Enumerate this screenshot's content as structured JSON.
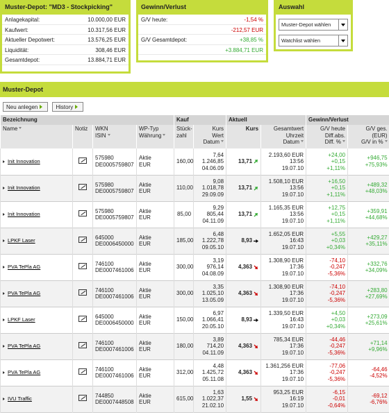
{
  "depot": {
    "title": "Muster-Depot: \"MD3 - Stockpicking\"",
    "rows": [
      {
        "label": "Anlagekapital:",
        "value": "10.000,00 EUR"
      },
      {
        "label": "Kaufwert:",
        "value": "10.317,56 EUR"
      },
      {
        "label": "Aktueller Depotwert:",
        "value": "13.576,25 EUR"
      },
      {
        "label": "Liquidität:",
        "value": "308,46 EUR"
      },
      {
        "label": "Gesamtdepot:",
        "value": "13.884,71 EUR"
      }
    ]
  },
  "gv": {
    "title": "Gewinn/Verlust",
    "rows": [
      {
        "label": "G/V heute:",
        "value": "-1,54 %"
      },
      {
        "value": "-212,57 EUR"
      },
      {
        "label": "G/V Gesamtdepot:",
        "value": "+38,85 %"
      },
      {
        "value": "+3.884,71 EUR"
      }
    ]
  },
  "auswahl": {
    "title": "Auswahl",
    "selects": [
      "Muster-Depot wählen",
      "Watchlist wählen"
    ]
  },
  "section": {
    "title": "Muster-Depot",
    "buttons": [
      "Neu anlegen",
      "History"
    ]
  },
  "table": {
    "groups": [
      "Bezeichnung",
      "Kauf",
      "Aktuell",
      "Gewinn/Verlust"
    ],
    "headers": [
      [
        "Name"
      ],
      [
        "Notiz"
      ],
      [
        "WKN",
        "ISIN"
      ],
      [
        "WP-Typ",
        "Währung"
      ],
      [
        "Stück-",
        "zahl"
      ],
      [
        "Kurs",
        "Wert",
        "Datum"
      ],
      [
        "Kurs"
      ],
      [
        "Gesamtwert",
        "Uhrzeit",
        "Datum"
      ],
      [
        "G/V heute",
        "Diff.abs.",
        "Diff. %"
      ],
      [
        "G/V ges.",
        "(EUR)",
        "G/V in %"
      ]
    ],
    "rows": [
      {
        "name": "Init Innovation",
        "wkn": "575980",
        "isin": "DE0005759807",
        "typ": "Aktie",
        "cur": "EUR",
        "qty": "160,00",
        "buy": [
          "7,64",
          "1.246,85",
          "04.06.09"
        ],
        "price": "13,71",
        "trend": "up",
        "total": [
          "2.193,60 EUR",
          "13:56",
          "19.07.10"
        ],
        "day": [
          "+24,00",
          "+0,15",
          "+1,11%"
        ],
        "gv": [
          "+946,75",
          "+75,93%"
        ]
      },
      {
        "name": "Init Innovation",
        "wkn": "575980",
        "isin": "DE0005759807",
        "typ": "Aktie",
        "cur": "EUR",
        "qty": "110,00",
        "buy": [
          "9,08",
          "1.018,78",
          "29.09.09"
        ],
        "price": "13,71",
        "trend": "up",
        "total": [
          "1.508,10 EUR",
          "13:56",
          "19.07.10"
        ],
        "day": [
          "+16,50",
          "+0,15",
          "+1,11%"
        ],
        "gv": [
          "+489,32",
          "+48,03%"
        ]
      },
      {
        "name": "Init Innovation",
        "wkn": "575980",
        "isin": "DE0005759807",
        "typ": "Aktie",
        "cur": "EUR",
        "qty": "85,00",
        "buy": [
          "9,29",
          "805,44",
          "04.11.09"
        ],
        "price": "13,71",
        "trend": "up",
        "total": [
          "1.165,35 EUR",
          "13:56",
          "19.07.10"
        ],
        "day": [
          "+12,75",
          "+0,15",
          "+1,11%"
        ],
        "gv": [
          "+359,91",
          "+44,68%"
        ]
      },
      {
        "name": "LPKF Laser",
        "wkn": "645000",
        "isin": "DE0006450000",
        "typ": "Aktie",
        "cur": "EUR",
        "qty": "185,00",
        "buy": [
          "6,48",
          "1.222,78",
          "09.05.10"
        ],
        "price": "8,93",
        "trend": "right",
        "total": [
          "1.652,05 EUR",
          "16:43",
          "19.07.10"
        ],
        "day": [
          "+5,55",
          "+0,03",
          "+0,34%"
        ],
        "gv": [
          "+429,27",
          "+35,11%"
        ]
      },
      {
        "name": "PVA TePla AG",
        "wkn": "746100",
        "isin": "DE0007461006",
        "typ": "Aktie",
        "cur": "EUR",
        "qty": "300,00",
        "buy": [
          "3,19",
          "976,14",
          "04.08.09"
        ],
        "price": "4,363",
        "trend": "down",
        "total": [
          "1.308,90 EUR",
          "17:36",
          "19.07.10"
        ],
        "day": [
          "-74,10",
          "-0,247",
          "-5,36%"
        ],
        "gv": [
          "+332,76",
          "+34,09%"
        ]
      },
      {
        "name": "PVA TePla AG",
        "wkn": "746100",
        "isin": "DE0007461006",
        "typ": "Aktie",
        "cur": "EUR",
        "qty": "300,00",
        "buy": [
          "3,35",
          "1.025,10",
          "13.05.09"
        ],
        "price": "4,363",
        "trend": "down",
        "total": [
          "1.308,90 EUR",
          "17:36",
          "19.07.10"
        ],
        "day": [
          "-74,10",
          "-0,247",
          "-5,36%"
        ],
        "gv": [
          "+283,80",
          "+27,69%"
        ]
      },
      {
        "name": "LPKF Laser",
        "wkn": "645000",
        "isin": "DE0006450000",
        "typ": "Aktie",
        "cur": "EUR",
        "qty": "150,00",
        "buy": [
          "6,97",
          "1.066,41",
          "20.05.10"
        ],
        "price": "8,93",
        "trend": "right",
        "total": [
          "1.339,50 EUR",
          "16:43",
          "19.07.10"
        ],
        "day": [
          "+4,50",
          "+0,03",
          "+0,34%"
        ],
        "gv": [
          "+273,09",
          "+25,61%"
        ]
      },
      {
        "name": "PVA TePla AG",
        "wkn": "746100",
        "isin": "DE0007461006",
        "typ": "Aktie",
        "cur": "EUR",
        "qty": "180,00",
        "buy": [
          "3,89",
          "714,20",
          "04.11.09"
        ],
        "price": "4,363",
        "trend": "down",
        "total": [
          "785,34 EUR",
          "17:36",
          "19.07.10"
        ],
        "day": [
          "-44,46",
          "-0,247",
          "-5,36%"
        ],
        "gv": [
          "+71,14",
          "+9,96%"
        ]
      },
      {
        "name": "PVA TePla AG",
        "wkn": "746100",
        "isin": "DE0007461006",
        "typ": "Aktie",
        "cur": "EUR",
        "qty": "312,00",
        "buy": [
          "4,48",
          "1.425,72",
          "05.11.08"
        ],
        "price": "4,363",
        "trend": "down",
        "total": [
          "1.361,256 EUR",
          "17:36",
          "19.07.10"
        ],
        "day": [
          "-77,06",
          "-0,247",
          "-5,36%"
        ],
        "gv": [
          "-64,46",
          "-4,52%"
        ]
      },
      {
        "name": "IVU Traffic",
        "wkn": "744850",
        "isin": "DE0007448508",
        "typ": "Aktie",
        "cur": "EUR",
        "qty": "615,00",
        "buy": [
          "1,63",
          "1.022,37",
          "21.02.10"
        ],
        "price": "1,55",
        "trend": "down",
        "total": [
          "953,25 EUR",
          "16:19",
          "19.07.10"
        ],
        "day": [
          "-6,15",
          "-0,01",
          "-0,64%"
        ],
        "gv": [
          "-69,12",
          "-6,76%"
        ]
      }
    ]
  }
}
